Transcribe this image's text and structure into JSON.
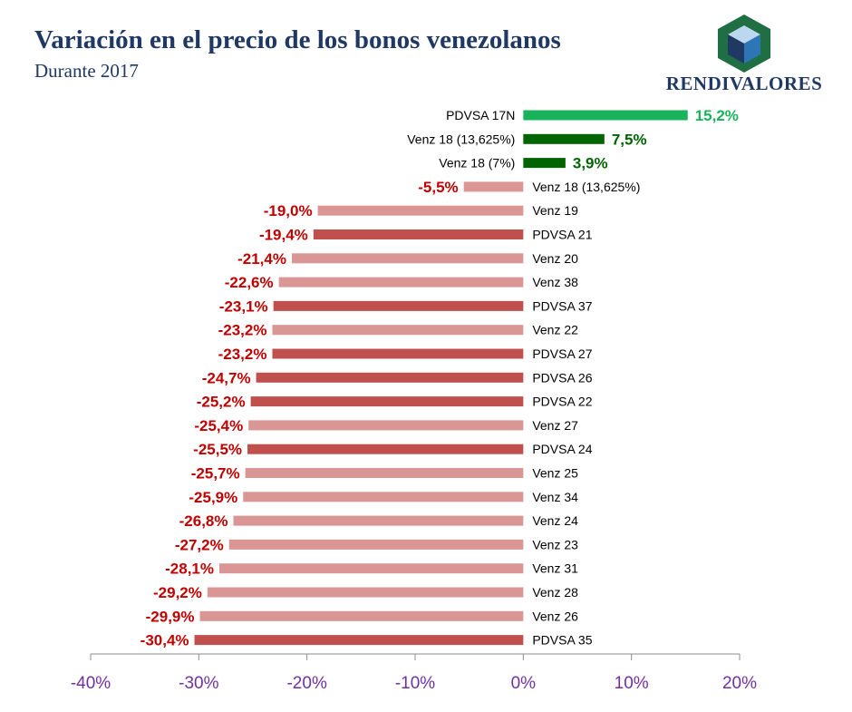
{
  "header": {
    "title": "Variación en el precio de los bonos venezolanos",
    "subtitle": "Durante 2017"
  },
  "logo": {
    "text": "RENDIVALORES",
    "icon": "cube-icon"
  },
  "colors": {
    "positive_bright": "#18b35a",
    "positive_dark": "#006400",
    "negative_dark": "#c0504d",
    "negative_light": "#d99694",
    "negative_label": "#c00000",
    "axis_tick_label": "#7030a0",
    "logo_green": "#1f6f43",
    "logo_blue": "#1f3864"
  },
  "chart_data": {
    "type": "bar",
    "orientation": "horizontal",
    "title": "Variación en el precio de los bonos venezolanos",
    "subtitle": "Durante 2017",
    "xlim": [
      -40,
      20
    ],
    "x_ticks": [
      -40,
      -30,
      -20,
      -10,
      0,
      10,
      20
    ],
    "x_tick_labels": [
      "-40%",
      "-30%",
      "-20%",
      "-10%",
      "0%",
      "10%",
      "20%"
    ],
    "grid": false,
    "legend": "none",
    "categories": [
      "PDVSA 17N",
      "Venz 18 (13,625%)",
      "Venz 18 (7%)",
      "Venz 18 (13,625%)",
      "Venz 19",
      "PDVSA 21",
      "Venz 20",
      "Venz 38",
      "PDVSA 37",
      "Venz 22",
      "PDVSA 27",
      "PDVSA 26",
      "PDVSA 22",
      "Venz 27",
      "PDVSA 24",
      "Venz 25",
      "Venz 34",
      "Venz 24",
      "Venz 23",
      "Venz 31",
      "Venz 28",
      "Venz 26",
      "PDVSA 35"
    ],
    "values": [
      15.2,
      7.5,
      3.9,
      -5.5,
      -19.0,
      -19.4,
      -21.4,
      -22.6,
      -23.1,
      -23.2,
      -23.2,
      -24.7,
      -25.2,
      -25.4,
      -25.5,
      -25.7,
      -25.9,
      -26.8,
      -27.2,
      -28.1,
      -29.2,
      -29.9,
      -30.4
    ],
    "value_labels": [
      "15,2%",
      "7,5%",
      "3,9%",
      "-5,5%",
      "-19,0%",
      "-19,4%",
      "-21,4%",
      "-22,6%",
      "-23,1%",
      "-23,2%",
      "-23,2%",
      "-24,7%",
      "-25,2%",
      "-25,4%",
      "-25,5%",
      "-25,7%",
      "-25,9%",
      "-26,8%",
      "-27,2%",
      "-28,1%",
      "-29,2%",
      "-29,9%",
      "-30,4%"
    ],
    "bar_colors": [
      "#18b35a",
      "#006400",
      "#006400",
      "#d99694",
      "#d99694",
      "#c0504d",
      "#d99694",
      "#d99694",
      "#c0504d",
      "#d99694",
      "#c0504d",
      "#c0504d",
      "#c0504d",
      "#d99694",
      "#c0504d",
      "#d99694",
      "#d99694",
      "#d99694",
      "#d99694",
      "#d99694",
      "#d99694",
      "#d99694",
      "#c0504d"
    ]
  }
}
